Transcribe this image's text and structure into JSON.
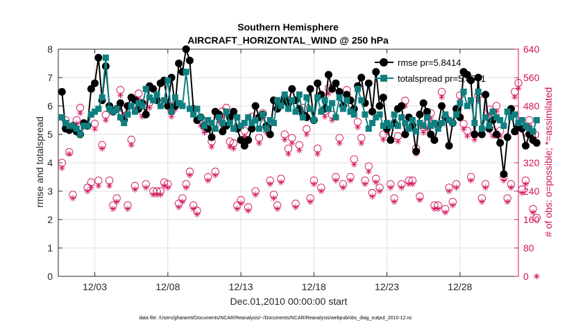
{
  "chart_data": {
    "type": "line",
    "title": "Southern Hemisphere",
    "subtitle": "AIRCRAFT_HORIZONTAL_WIND @ 250 hPa",
    "xlabel": "Dec.01,2010 00:00:00 start",
    "ylabel": "rmse and totalspread",
    "y2label": "# of obs: o=possible; *=assimilated",
    "footnote": "data file: /Users/gharamti/Documents/NCAR/Reanalysis/~/Documents/NCAR/Reanalysis/webpub/obs_diag_output_2010-12.nc",
    "xlim": [
      0,
      31.5
    ],
    "ylim": [
      0,
      8
    ],
    "y2lim": [
      0,
      640
    ],
    "xticks": [
      2.5,
      7.5,
      12.5,
      17.5,
      22.5,
      27.5
    ],
    "xtick_labels": [
      "12/03",
      "12/08",
      "12/13",
      "12/18",
      "12/23",
      "12/28"
    ],
    "yticks": [
      0,
      1,
      2,
      3,
      4,
      5,
      6,
      7,
      8
    ],
    "y2ticks": [
      0,
      80,
      160,
      240,
      320,
      400,
      480,
      560,
      640
    ],
    "grid": true,
    "legend_position": "top-right",
    "legend": [
      "rmse pr=5.8414",
      "totalspread pr=5.8571"
    ],
    "colors": {
      "rmse": "#000000",
      "totalspread": "#0f7f7f",
      "obs": "#d0105a",
      "axis": "#262626",
      "grid": "#dfdfdf"
    },
    "x_start": 0.25,
    "x_step": 0.25,
    "series": [
      {
        "name": "rmse",
        "values": [
          6.5,
          5.2,
          5.15,
          5.3,
          5.1,
          5.0,
          5.4,
          5.3,
          6.6,
          6.8,
          7.7,
          6.2,
          7.4,
          6.0,
          5.8,
          5.9,
          6.1,
          5.5,
          6.0,
          6.3,
          6.2,
          5.9,
          6.1,
          5.7,
          6.7,
          6.6,
          6.2,
          6.8,
          6.9,
          6.0,
          7.0,
          6.0,
          7.5,
          7.2,
          8.0,
          7.6,
          5.9,
          5.5,
          5.6,
          5.3,
          5.2,
          4.9,
          5.8,
          5.7,
          5.1,
          5.3,
          5.6,
          5.8,
          5.2,
          4.8,
          4.6,
          4.8,
          5.2,
          6.0,
          5.6,
          5.7,
          5.3,
          5.0,
          6.2,
          5.9,
          6.1,
          6.3,
          6.1,
          6.6,
          6.2,
          5.9,
          5.7,
          5.6,
          6.6,
          5.5,
          6.8,
          6.4,
          5.9,
          7.1,
          6.6,
          6.8,
          6.5,
          6.0,
          6.4,
          6.2,
          5.9,
          6.7,
          7.0,
          6.1,
          6.8,
          5.8,
          7.2,
          6.0,
          6.3,
          5.2,
          4.8,
          5.4,
          5.9,
          6.0,
          5.0,
          5.6,
          5.3,
          4.4,
          5.7,
          6.1,
          5.8,
          5.0,
          4.8,
          5.3,
          6.0,
          5.6,
          4.6,
          5.4,
          5.9,
          5.6,
          7.2,
          7.1,
          6.9,
          5.0,
          7.0,
          5.0,
          6.4,
          5.2,
          5.5,
          5.0,
          4.7,
          3.6,
          4.9,
          5.9,
          5.1,
          5.3,
          5.2,
          4.6,
          5.0,
          4.8,
          4.7
        ]
      },
      {
        "name": "totalspread",
        "values": [
          5.6,
          5.4,
          5.3,
          5.3,
          5.2,
          5.0,
          5.3,
          5.3,
          5.7,
          5.8,
          5.9,
          6.3,
          7.7,
          5.9,
          5.8,
          5.9,
          5.6,
          5.4,
          5.7,
          6.0,
          5.8,
          6.1,
          6.0,
          6.6,
          6.3,
          6.2,
          6.4,
          6.0,
          6.2,
          6.9,
          5.8,
          6.3,
          6.1,
          6.0,
          7.2,
          5.9,
          5.7,
          5.9,
          5.6,
          5.3,
          5.5,
          5.4,
          5.2,
          5.6,
          5.4,
          5.8,
          5.4,
          5.2,
          5.6,
          5.3,
          5.4,
          5.6,
          5.4,
          5.5,
          5.2,
          5.7,
          5.2,
          5.5,
          5.4,
          6.2,
          6.0,
          6.4,
          5.9,
          6.2,
          5.8,
          6.4,
          5.6,
          6.3,
          5.9,
          5.5,
          6.3,
          5.8,
          6.2,
          5.9,
          6.1,
          5.6,
          6.3,
          5.9,
          6.2,
          5.8,
          5.7,
          6.6,
          6.2,
          5.7,
          5.2,
          5.4,
          5.6,
          5.7,
          5.3,
          5.4,
          5.3,
          5.7,
          5.3,
          5.6,
          5.4,
          5.2,
          5.5,
          5.1,
          5.4,
          5.3,
          5.6,
          5.3,
          5.4,
          5.2,
          5.4,
          5.7,
          5.5,
          5.4,
          5.7,
          6.1,
          6.5,
          6.0,
          6.2,
          5.4,
          6.5,
          5.2,
          5.6,
          5.3,
          5.8,
          5.6,
          5.5,
          5.3,
          5.8,
          5.6,
          5.7,
          5.4,
          5.5,
          5.3,
          5.2,
          5.1,
          5.5
        ]
      },
      {
        "name": "possible",
        "axis": "right",
        "values": [
          320,
          440,
          350,
          230,
          440,
          475,
          430,
          250,
          265,
          430,
          270,
          370,
          455,
          270,
          200,
          220,
          525,
          470,
          200,
          385,
          255,
          515,
          465,
          260,
          490,
          240,
          240,
          240,
          265,
          260,
          465,
          485,
          205,
          220,
          260,
          295,
          200,
          185,
          440,
          420,
          280,
          380,
          295,
          450,
          465,
          475,
          380,
          375,
          200,
          215,
          410,
          195,
          450,
          240,
          390,
          460,
          420,
          270,
          230,
          200,
          275,
          400,
          360,
          390,
          205,
          370,
          475,
          415,
          220,
          270,
          360,
          250,
          465,
          530,
          455,
          280,
          390,
          260,
          525,
          280,
          330,
          435,
          390,
          270,
          310,
          235,
          275,
          250,
          400,
          420,
          260,
          220,
          395,
          260,
          495,
          270,
          270,
          360,
          225,
          420,
          430,
          460,
          200,
          200,
          520,
          190,
          250,
          210,
          260,
          510,
          430,
          410,
          280,
          400,
          510,
          220,
          260,
          470,
          410,
          480,
          410,
          280,
          220,
          260,
          520,
          545,
          245,
          270,
          440,
          190,
          165
        ]
      },
      {
        "name": "assimilated",
        "axis": "right",
        "values": [
          305,
          425,
          345,
          220,
          430,
          460,
          420,
          240,
          250,
          415,
          255,
          360,
          440,
          255,
          190,
          210,
          510,
          455,
          190,
          370,
          245,
          500,
          450,
          250,
          475,
          230,
          230,
          230,
          255,
          250,
          450,
          470,
          195,
          210,
          250,
          285,
          190,
          175,
          425,
          405,
          270,
          365,
          285,
          435,
          450,
          460,
          365,
          360,
          190,
          205,
          395,
          185,
          435,
          230,
          375,
          445,
          405,
          260,
          220,
          190,
          265,
          385,
          345,
          375,
          195,
          355,
          460,
          400,
          210,
          260,
          345,
          240,
          450,
          515,
          440,
          270,
          375,
          250,
          510,
          270,
          315,
          420,
          375,
          260,
          295,
          225,
          265,
          240,
          385,
          405,
          250,
          210,
          380,
          250,
          480,
          260,
          260,
          345,
          215,
          405,
          415,
          445,
          190,
          190,
          505,
          180,
          240,
          200,
          250,
          495,
          415,
          395,
          270,
          385,
          495,
          210,
          250,
          455,
          395,
          465,
          395,
          270,
          210,
          250,
          505,
          530,
          235,
          260,
          425,
          180,
          0
        ]
      }
    ]
  }
}
